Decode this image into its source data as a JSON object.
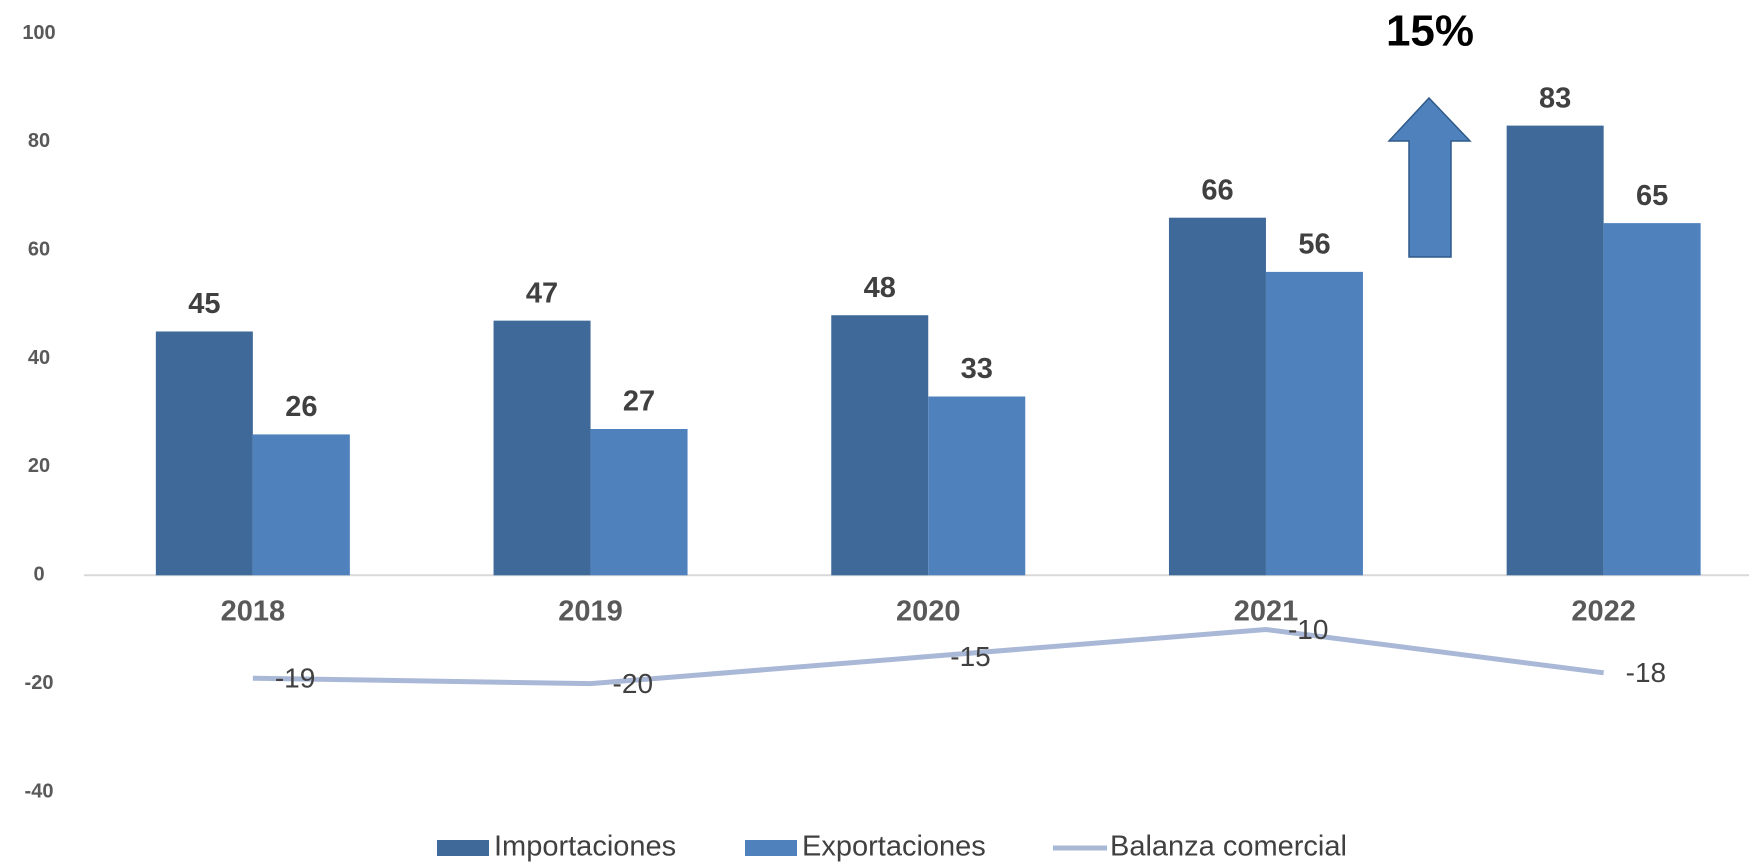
{
  "chart_data": {
    "type": "bar",
    "categories": [
      "2018",
      "2019",
      "2020",
      "2021",
      "2022"
    ],
    "series": [
      {
        "name": "Importaciones",
        "color": "#3e6998",
        "type": "bar",
        "values": [
          45,
          47,
          48,
          66,
          83
        ]
      },
      {
        "name": "Exportaciones",
        "color": "#4f81bd",
        "type": "bar",
        "values": [
          26,
          27,
          33,
          56,
          65
        ]
      },
      {
        "name": "Balanza comercial",
        "color": "#a9b8d6",
        "type": "line",
        "values": [
          -19,
          -20,
          -15,
          -10,
          -18
        ]
      }
    ],
    "ylim": [
      -40,
      100
    ],
    "yticks": [
      -40,
      -20,
      0,
      20,
      40,
      60,
      80,
      100
    ],
    "grid": false,
    "legend": "bottom",
    "annotation": "15%"
  }
}
